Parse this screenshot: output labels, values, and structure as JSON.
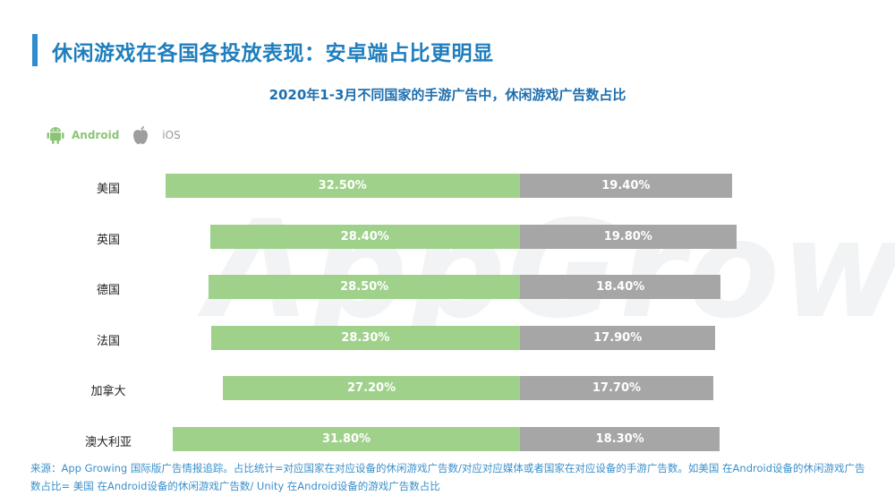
{
  "page": {
    "title": "休闲游戏在各国各投放表现：安卓端占比更明显",
    "footer": "来源：App Growing 国际版广告情报追踪。占比统计=对应国家在对应设备的休闲游戏广告数/对应对应媒体或者国家在对应设备的手游广告数。如美国 在Android设备的休闲游戏广告数占比= 美国 在Android设备的休闲游戏广告数/ Unity 在Android设备的游戏广告数占比",
    "watermark": "AppGrowing"
  },
  "legend": {
    "android_label": "Android",
    "ios_label": "iOS",
    "android_icon": "android-icon",
    "ios_icon": "apple-icon"
  },
  "colors": {
    "android": "#9fd18b",
    "ios": "#a6a6a6",
    "title": "#1f7fbe"
  },
  "chart_data": {
    "type": "bar",
    "orientation": "horizontal-diverging",
    "title": "2020年1-3月不同国家的手游广告中，休闲游戏广告数占比",
    "categories": [
      "美国",
      "英国",
      "德国",
      "法国",
      "加拿大",
      "澳大利亚"
    ],
    "series": [
      {
        "name": "Android",
        "values": [
          32.5,
          28.4,
          28.5,
          28.3,
          27.2,
          31.8
        ],
        "labels": [
          "32.50%",
          "28.40%",
          "28.50%",
          "28.30%",
          "27.20%",
          "31.80%"
        ]
      },
      {
        "name": "iOS",
        "values": [
          19.4,
          19.8,
          18.4,
          17.9,
          17.7,
          18.3
        ],
        "labels": [
          "19.40%",
          "19.80%",
          "18.40%",
          "17.90%",
          "17.70%",
          "18.30%"
        ]
      }
    ],
    "unit": "%",
    "legend_position": "top-left",
    "grid": false
  }
}
